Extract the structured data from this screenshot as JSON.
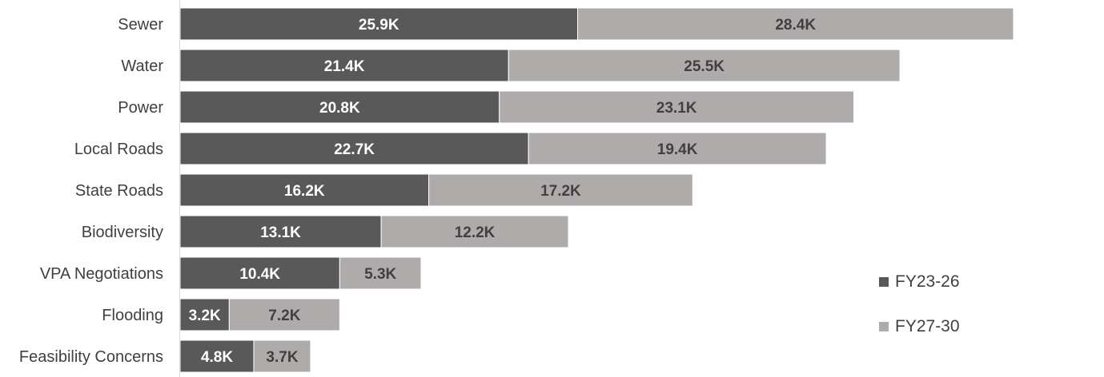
{
  "chart_data": {
    "type": "bar",
    "orientation": "horizontal",
    "stacked": true,
    "categories": [
      "Sewer",
      "Water",
      "Power",
      "Local Roads",
      "State Roads",
      "Biodiversity",
      "VPA Negotiations",
      "Flooding",
      "Feasibility Concerns"
    ],
    "series": [
      {
        "name": "FY23-26",
        "color": "#595959",
        "label_color": "#ffffff",
        "values": [
          25.9,
          21.4,
          20.8,
          22.7,
          16.2,
          13.1,
          10.4,
          3.2,
          4.8
        ],
        "labels": [
          "25.9K",
          "21.4K",
          "20.8K",
          "22.7K",
          "16.2K",
          "13.1K",
          "10.4K",
          "3.2K",
          "4.8K"
        ]
      },
      {
        "name": "FY27-30",
        "color": "#afabab",
        "label_color": "#404040",
        "values": [
          28.4,
          25.5,
          23.1,
          19.4,
          17.2,
          12.2,
          5.3,
          7.2,
          3.7
        ],
        "labels": [
          "28.4K",
          "25.5K",
          "23.1K",
          "19.4K",
          "17.2K",
          "12.2K",
          "5.3K",
          "7.2K",
          "3.7K"
        ]
      }
    ],
    "title": "",
    "xlabel": "",
    "ylabel": "",
    "xlim": [
      0,
      60
    ],
    "grid": false,
    "legend_position": "bottom-right",
    "axis_line_color": "#d9d9d9"
  }
}
